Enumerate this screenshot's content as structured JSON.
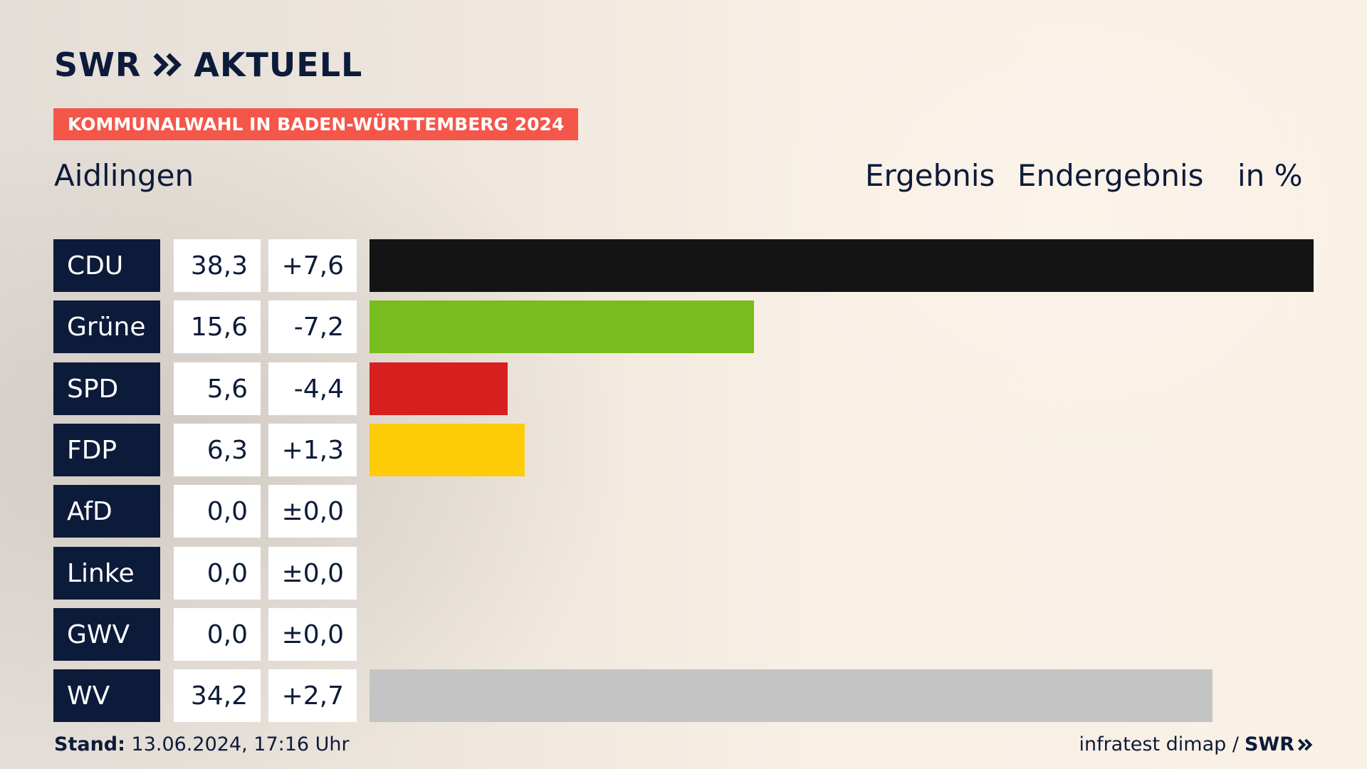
{
  "brand": {
    "logo_text": "SWR",
    "logo_suffix": "AKTUELL",
    "color": "#0d1b3a"
  },
  "kicker": {
    "label": "KOMMUNALWAHL IN BADEN-WÜRTTEMBERG 2024",
    "color": "#f4564a"
  },
  "header": {
    "place": "Aidlingen",
    "col_result": "Ergebnis",
    "col_status": "Endergebnis",
    "col_unit": "in %"
  },
  "chart_data": {
    "type": "bar",
    "orientation": "horizontal",
    "xlim": [
      0,
      38.3
    ],
    "categories": [
      "CDU",
      "Grüne",
      "SPD",
      "FDP",
      "AfD",
      "Linke",
      "GWV",
      "WV"
    ],
    "values": [
      38.3,
      15.6,
      5.6,
      6.3,
      0.0,
      0.0,
      0.0,
      34.2
    ],
    "value_labels": [
      "38,3",
      "15,6",
      "5,6",
      "6,3",
      "0,0",
      "0,0",
      "0,0",
      "34,2"
    ],
    "diff_labels": [
      "+7,6",
      "-7,2",
      "-4,4",
      "+1,3",
      "±0,0",
      "±0,0",
      "±0,0",
      "+2,7"
    ],
    "colors": [
      "#141414",
      "#78bd1d",
      "#d71f1f",
      "#ffcc0a",
      "#0b9ee0",
      "#be3075",
      "#a0a0a0",
      "#c4c4c4"
    ]
  },
  "footer": {
    "stand_label": "Stand:",
    "stand_value": "13.06.2024, 17:16 Uhr",
    "source": "infratest dimap /",
    "source_logo": "SWR"
  }
}
